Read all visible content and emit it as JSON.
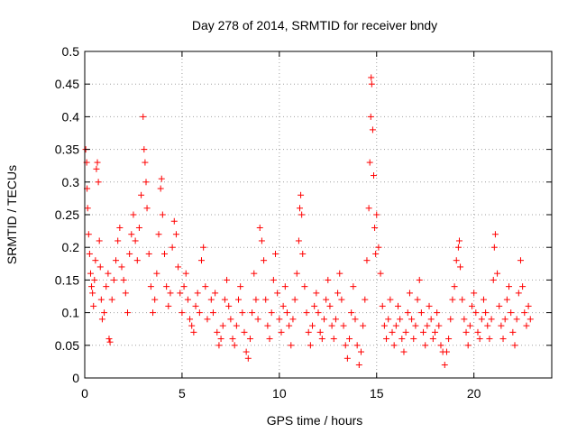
{
  "chart_data": {
    "type": "scatter",
    "title": "Day 278 of 2014, SRMTID for receiver bndy",
    "xlabel": "GPS time / hours",
    "ylabel": "SRMTID / TECUs",
    "xlim": [
      0,
      24
    ],
    "ylim": [
      0,
      0.5
    ],
    "xticks": [
      0,
      5,
      10,
      15,
      20
    ],
    "yticks": [
      0,
      0.05,
      0.1,
      0.15,
      0.2,
      0.25,
      0.3,
      0.35,
      0.4,
      0.45,
      0.5
    ],
    "xtick_labels": [
      "0",
      "5",
      "10",
      "15",
      "20"
    ],
    "ytick_labels": [
      "0",
      "0.05",
      "0.1",
      "0.15",
      "0.2",
      "0.25",
      "0.3",
      "0.35",
      "0.4",
      "0.45",
      "0.5"
    ],
    "grid": true,
    "marker": "+",
    "color": "#ff0000",
    "series": [
      {
        "name": "SRMTID",
        "points": [
          [
            0.05,
            0.35
          ],
          [
            0.1,
            0.33
          ],
          [
            0.12,
            0.29
          ],
          [
            0.15,
            0.26
          ],
          [
            0.2,
            0.22
          ],
          [
            0.25,
            0.19
          ],
          [
            0.3,
            0.16
          ],
          [
            0.35,
            0.14
          ],
          [
            0.4,
            0.13
          ],
          [
            0.45,
            0.11
          ],
          [
            0.5,
            0.15
          ],
          [
            0.55,
            0.18
          ],
          [
            0.6,
            0.32
          ],
          [
            0.65,
            0.33
          ],
          [
            0.7,
            0.3
          ],
          [
            0.75,
            0.21
          ],
          [
            0.8,
            0.17
          ],
          [
            0.85,
            0.12
          ],
          [
            0.9,
            0.09
          ],
          [
            1.0,
            0.1
          ],
          [
            1.1,
            0.14
          ],
          [
            1.2,
            0.16
          ],
          [
            1.25,
            0.06
          ],
          [
            1.3,
            0.055
          ],
          [
            1.4,
            0.12
          ],
          [
            1.5,
            0.15
          ],
          [
            1.6,
            0.18
          ],
          [
            1.7,
            0.21
          ],
          [
            1.8,
            0.23
          ],
          [
            1.9,
            0.17
          ],
          [
            2.0,
            0.15
          ],
          [
            2.1,
            0.13
          ],
          [
            2.2,
            0.1
          ],
          [
            2.3,
            0.19
          ],
          [
            2.4,
            0.22
          ],
          [
            2.5,
            0.25
          ],
          [
            2.6,
            0.21
          ],
          [
            2.7,
            0.18
          ],
          [
            2.8,
            0.23
          ],
          [
            2.9,
            0.28
          ],
          [
            3.0,
            0.4
          ],
          [
            3.05,
            0.35
          ],
          [
            3.1,
            0.33
          ],
          [
            3.15,
            0.3
          ],
          [
            3.2,
            0.26
          ],
          [
            3.3,
            0.19
          ],
          [
            3.4,
            0.14
          ],
          [
            3.5,
            0.1
          ],
          [
            3.6,
            0.12
          ],
          [
            3.7,
            0.16
          ],
          [
            3.8,
            0.22
          ],
          [
            3.9,
            0.29
          ],
          [
            3.95,
            0.305
          ],
          [
            4.0,
            0.25
          ],
          [
            4.1,
            0.19
          ],
          [
            4.2,
            0.14
          ],
          [
            4.3,
            0.11
          ],
          [
            4.4,
            0.13
          ],
          [
            4.5,
            0.2
          ],
          [
            4.6,
            0.24
          ],
          [
            4.7,
            0.22
          ],
          [
            4.8,
            0.17
          ],
          [
            4.9,
            0.13
          ],
          [
            5.0,
            0.1
          ],
          [
            5.1,
            0.14
          ],
          [
            5.2,
            0.16
          ],
          [
            5.3,
            0.12
          ],
          [
            5.4,
            0.09
          ],
          [
            5.5,
            0.08
          ],
          [
            5.6,
            0.07
          ],
          [
            5.7,
            0.11
          ],
          [
            5.8,
            0.13
          ],
          [
            5.9,
            0.1
          ],
          [
            6.0,
            0.18
          ],
          [
            6.1,
            0.2
          ],
          [
            6.2,
            0.14
          ],
          [
            6.3,
            0.09
          ],
          [
            6.5,
            0.12
          ],
          [
            6.6,
            0.1
          ],
          [
            6.7,
            0.13
          ],
          [
            6.8,
            0.07
          ],
          [
            6.9,
            0.05
          ],
          [
            7.0,
            0.06
          ],
          [
            7.1,
            0.08
          ],
          [
            7.2,
            0.12
          ],
          [
            7.3,
            0.15
          ],
          [
            7.4,
            0.11
          ],
          [
            7.5,
            0.09
          ],
          [
            7.6,
            0.06
          ],
          [
            7.7,
            0.05
          ],
          [
            7.8,
            0.08
          ],
          [
            7.9,
            0.12
          ],
          [
            8.0,
            0.14
          ],
          [
            8.1,
            0.1
          ],
          [
            8.2,
            0.07
          ],
          [
            8.3,
            0.04
          ],
          [
            8.4,
            0.03
          ],
          [
            8.5,
            0.06
          ],
          [
            8.6,
            0.1
          ],
          [
            8.7,
            0.16
          ],
          [
            8.8,
            0.12
          ],
          [
            8.9,
            0.09
          ],
          [
            9.0,
            0.23
          ],
          [
            9.1,
            0.21
          ],
          [
            9.2,
            0.18
          ],
          [
            9.3,
            0.12
          ],
          [
            9.4,
            0.08
          ],
          [
            9.5,
            0.06
          ],
          [
            9.6,
            0.1
          ],
          [
            9.7,
            0.15
          ],
          [
            9.8,
            0.19
          ],
          [
            9.9,
            0.13
          ],
          [
            10.0,
            0.09
          ],
          [
            10.1,
            0.07
          ],
          [
            10.2,
            0.11
          ],
          [
            10.3,
            0.14
          ],
          [
            10.4,
            0.1
          ],
          [
            10.5,
            0.08
          ],
          [
            10.6,
            0.05
          ],
          [
            10.7,
            0.09
          ],
          [
            10.8,
            0.12
          ],
          [
            10.9,
            0.16
          ],
          [
            11.0,
            0.21
          ],
          [
            11.05,
            0.26
          ],
          [
            11.1,
            0.28
          ],
          [
            11.15,
            0.25
          ],
          [
            11.2,
            0.19
          ],
          [
            11.3,
            0.14
          ],
          [
            11.4,
            0.1
          ],
          [
            11.5,
            0.07
          ],
          [
            11.6,
            0.05
          ],
          [
            11.7,
            0.08
          ],
          [
            11.8,
            0.11
          ],
          [
            11.9,
            0.13
          ],
          [
            12.0,
            0.1
          ],
          [
            12.1,
            0.07
          ],
          [
            12.2,
            0.06
          ],
          [
            12.3,
            0.09
          ],
          [
            12.4,
            0.12
          ],
          [
            12.5,
            0.15
          ],
          [
            12.6,
            0.11
          ],
          [
            12.7,
            0.08
          ],
          [
            12.8,
            0.06
          ],
          [
            12.9,
            0.09
          ],
          [
            13.0,
            0.13
          ],
          [
            13.1,
            0.16
          ],
          [
            13.2,
            0.12
          ],
          [
            13.3,
            0.08
          ],
          [
            13.4,
            0.05
          ],
          [
            13.5,
            0.03
          ],
          [
            13.6,
            0.06
          ],
          [
            13.7,
            0.1
          ],
          [
            13.8,
            0.14
          ],
          [
            13.9,
            0.09
          ],
          [
            14.0,
            0.05
          ],
          [
            14.1,
            0.02
          ],
          [
            14.2,
            0.04
          ],
          [
            14.3,
            0.08
          ],
          [
            14.4,
            0.12
          ],
          [
            14.5,
            0.18
          ],
          [
            14.6,
            0.26
          ],
          [
            14.65,
            0.33
          ],
          [
            14.7,
            0.4
          ],
          [
            14.72,
            0.46
          ],
          [
            14.75,
            0.45
          ],
          [
            14.8,
            0.38
          ],
          [
            14.85,
            0.31
          ],
          [
            14.9,
            0.23
          ],
          [
            14.95,
            0.19
          ],
          [
            15.0,
            0.25
          ],
          [
            15.1,
            0.2
          ],
          [
            15.2,
            0.16
          ],
          [
            15.3,
            0.11
          ],
          [
            15.4,
            0.08
          ],
          [
            15.5,
            0.06
          ],
          [
            15.6,
            0.09
          ],
          [
            15.7,
            0.12
          ],
          [
            15.8,
            0.07
          ],
          [
            15.9,
            0.05
          ],
          [
            16.0,
            0.08
          ],
          [
            16.1,
            0.11
          ],
          [
            16.2,
            0.09
          ],
          [
            16.3,
            0.06
          ],
          [
            16.4,
            0.04
          ],
          [
            16.5,
            0.07
          ],
          [
            16.6,
            0.1
          ],
          [
            16.7,
            0.13
          ],
          [
            16.8,
            0.09
          ],
          [
            16.9,
            0.06
          ],
          [
            17.0,
            0.08
          ],
          [
            17.1,
            0.12
          ],
          [
            17.2,
            0.15
          ],
          [
            17.3,
            0.1
          ],
          [
            17.4,
            0.07
          ],
          [
            17.5,
            0.05
          ],
          [
            17.6,
            0.08
          ],
          [
            17.7,
            0.11
          ],
          [
            17.8,
            0.09
          ],
          [
            17.9,
            0.06
          ],
          [
            18.0,
            0.07
          ],
          [
            18.1,
            0.1
          ],
          [
            18.2,
            0.08
          ],
          [
            18.3,
            0.05
          ],
          [
            18.4,
            0.04
          ],
          [
            18.5,
            0.02
          ],
          [
            18.6,
            0.04
          ],
          [
            18.7,
            0.06
          ],
          [
            18.8,
            0.09
          ],
          [
            18.9,
            0.12
          ],
          [
            19.0,
            0.14
          ],
          [
            19.1,
            0.18
          ],
          [
            19.2,
            0.2
          ],
          [
            19.25,
            0.21
          ],
          [
            19.3,
            0.17
          ],
          [
            19.4,
            0.12
          ],
          [
            19.5,
            0.09
          ],
          [
            19.6,
            0.07
          ],
          [
            19.7,
            0.05
          ],
          [
            19.8,
            0.08
          ],
          [
            19.9,
            0.11
          ],
          [
            20.0,
            0.13
          ],
          [
            20.1,
            0.1
          ],
          [
            20.2,
            0.07
          ],
          [
            20.3,
            0.06
          ],
          [
            20.4,
            0.09
          ],
          [
            20.5,
            0.12
          ],
          [
            20.6,
            0.1
          ],
          [
            20.7,
            0.08
          ],
          [
            20.8,
            0.06
          ],
          [
            20.9,
            0.09
          ],
          [
            21.0,
            0.15
          ],
          [
            21.05,
            0.2
          ],
          [
            21.1,
            0.22
          ],
          [
            21.2,
            0.16
          ],
          [
            21.3,
            0.11
          ],
          [
            21.4,
            0.08
          ],
          [
            21.5,
            0.06
          ],
          [
            21.6,
            0.09
          ],
          [
            21.7,
            0.12
          ],
          [
            21.8,
            0.14
          ],
          [
            21.9,
            0.1
          ],
          [
            22.0,
            0.07
          ],
          [
            22.1,
            0.05
          ],
          [
            22.2,
            0.09
          ],
          [
            22.3,
            0.13
          ],
          [
            22.4,
            0.18
          ],
          [
            22.5,
            0.14
          ],
          [
            22.6,
            0.1
          ],
          [
            22.7,
            0.08
          ],
          [
            22.8,
            0.11
          ],
          [
            22.9,
            0.09
          ]
        ]
      }
    ]
  }
}
